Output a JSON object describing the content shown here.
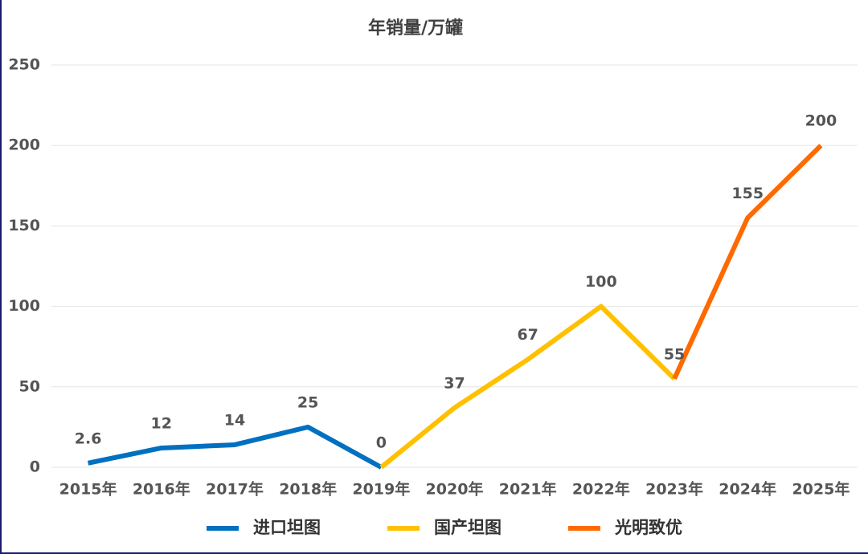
{
  "chart_data": {
    "type": "line",
    "title": "年销量/万罐",
    "categories": [
      "2015年",
      "2016年",
      "2017年",
      "2018年",
      "2019年",
      "2020年",
      "2021年",
      "2022年",
      "2023年",
      "2024年",
      "2025年"
    ],
    "series": [
      {
        "name": "进口坦图",
        "color": "#0070c0",
        "values": [
          2.6,
          12,
          14,
          25,
          0,
          null,
          null,
          null,
          null,
          null,
          null
        ]
      },
      {
        "name": "国产坦图",
        "color": "#ffc000",
        "values": [
          null,
          null,
          null,
          null,
          0,
          37,
          67,
          100,
          55,
          null,
          null
        ]
      },
      {
        "name": "光明致优",
        "color": "#ff6a00",
        "values": [
          null,
          null,
          null,
          null,
          null,
          null,
          null,
          null,
          55,
          155,
          200
        ]
      }
    ],
    "ylim": [
      0,
      250
    ],
    "yticks": [
      0,
      50,
      100,
      150,
      200,
      250
    ],
    "grid": true,
    "legend": "bottom"
  }
}
